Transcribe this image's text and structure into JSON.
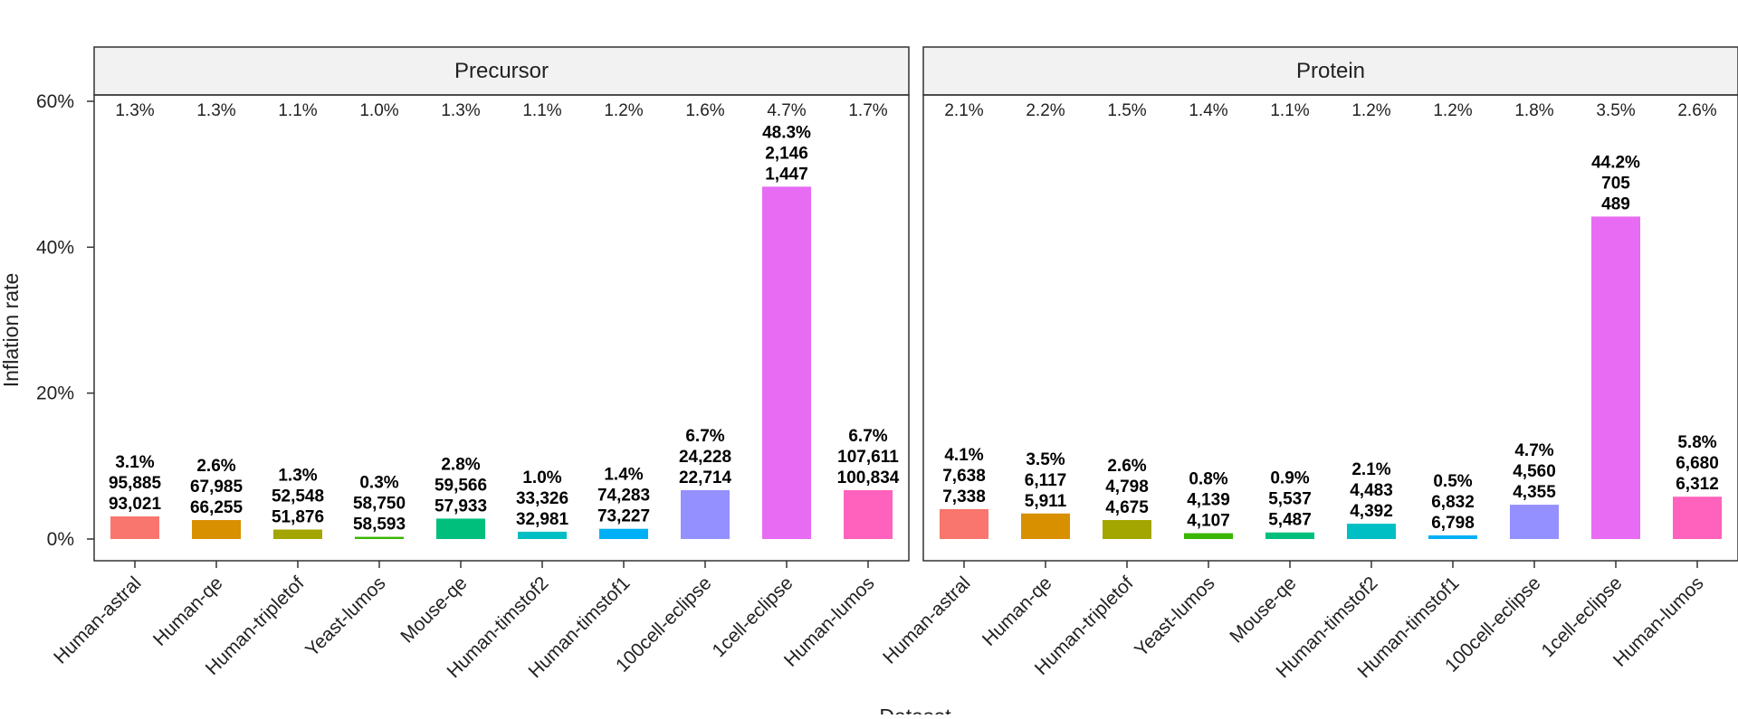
{
  "chart_data": {
    "type": "bar",
    "ylabel": "Inflation rate",
    "xlabel": "Dataset",
    "ylim": [
      0,
      60
    ],
    "yticks": [
      "0%",
      "20%",
      "40%",
      "60%"
    ],
    "ytick_values": [
      0,
      20,
      40,
      60
    ],
    "grid": false,
    "legend": "none",
    "categories": [
      "Human-astral",
      "Human-qe",
      "Human-tripletof",
      "Yeast-lumos",
      "Mouse-qe",
      "Human-timstof2",
      "Human-timstof1",
      "100cell-eclipse",
      "1cell-eclipse",
      "Human-lumos"
    ],
    "colors": [
      "#F8766D",
      "#D89000",
      "#A3A500",
      "#39B600",
      "#00BF7D",
      "#00BFC4",
      "#00B0F6",
      "#9590FF",
      "#E76BF3",
      "#FF62BC"
    ],
    "panels": [
      {
        "title": "Precursor",
        "values": [
          3.1,
          2.6,
          1.3,
          0.3,
          2.8,
          1.0,
          1.4,
          6.7,
          48.3,
          6.7
        ],
        "top_labels": [
          "1.3%",
          "1.3%",
          "1.1%",
          "1.0%",
          "1.3%",
          "1.1%",
          "1.2%",
          "1.6%",
          "4.7%",
          "1.7%"
        ],
        "bar_labels": [
          [
            "3.1%",
            "95,885",
            "93,021"
          ],
          [
            "2.6%",
            "67,985",
            "66,255"
          ],
          [
            "1.3%",
            "52,548",
            "51,876"
          ],
          [
            "0.3%",
            "58,750",
            "58,593"
          ],
          [
            "2.8%",
            "59,566",
            "57,933"
          ],
          [
            "1.0%",
            "33,326",
            "32,981"
          ],
          [
            "1.4%",
            "74,283",
            "73,227"
          ],
          [
            "6.7%",
            "24,228",
            "22,714"
          ],
          [
            "48.3%",
            "2,146",
            "1,447"
          ],
          [
            "6.7%",
            "107,611",
            "100,834"
          ]
        ]
      },
      {
        "title": "Protein",
        "values": [
          4.1,
          3.5,
          2.6,
          0.8,
          0.9,
          2.1,
          0.5,
          4.7,
          44.2,
          5.8
        ],
        "top_labels": [
          "2.1%",
          "2.2%",
          "1.5%",
          "1.4%",
          "1.1%",
          "1.2%",
          "1.2%",
          "1.8%",
          "3.5%",
          "2.6%"
        ],
        "bar_labels": [
          [
            "4.1%",
            "7,638",
            "7,338"
          ],
          [
            "3.5%",
            "6,117",
            "5,911"
          ],
          [
            "2.6%",
            "4,798",
            "4,675"
          ],
          [
            "0.8%",
            "4,139",
            "4,107"
          ],
          [
            "0.9%",
            "5,537",
            "5,487"
          ],
          [
            "2.1%",
            "4,483",
            "4,392"
          ],
          [
            "0.5%",
            "6,832",
            "6,798"
          ],
          [
            "4.7%",
            "4,560",
            "4,355"
          ],
          [
            "44.2%",
            "705",
            "489"
          ],
          [
            "5.8%",
            "6,680",
            "6,312"
          ]
        ]
      }
    ]
  }
}
